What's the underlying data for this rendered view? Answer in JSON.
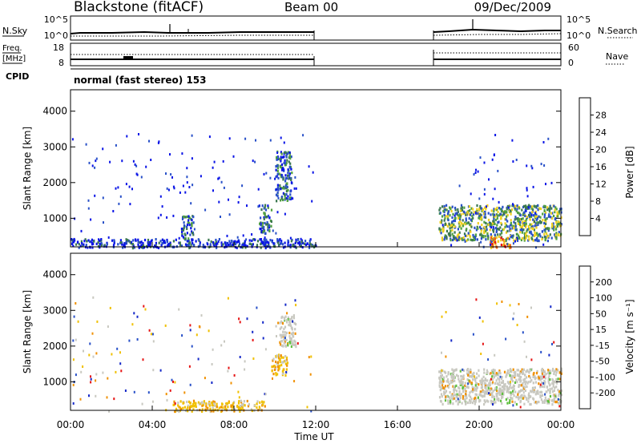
{
  "header": {
    "station": "Blackstone (fitACF)",
    "beam": "Beam 00",
    "date": "09/Dec/2009"
  },
  "strip_labels": {
    "nsky": "N.Sky",
    "nsearch": "N.Search",
    "freq": "Freq.",
    "freq_unit": "[MHz]",
    "nave": "Nave",
    "cpid": "CPID"
  },
  "strip_ticks": {
    "nsky_left": [
      "10^5",
      "10^0"
    ],
    "nsearch_right": [
      "10^5",
      "10^0"
    ],
    "freq_left": [
      "18",
      "8"
    ],
    "nave_right": [
      "60",
      "0"
    ]
  },
  "cpid_text": "normal (fast stereo) 153",
  "colors": {
    "power_scale": [
      "#0a14e6",
      "#2850c8",
      "#3c7850",
      "#50a040",
      "#f0d020",
      "#f0a000",
      "#f06400",
      "#e61414"
    ],
    "velocity_scale": [
      "#1428c8",
      "#2850c8",
      "#3c7850",
      "#60c040",
      "#c8c8c0",
      "#f0c000",
      "#f09000",
      "#f05000",
      "#e61414"
    ],
    "ground_gray": "#c8c8c0"
  },
  "chart_data": [
    {
      "type": "heatmap",
      "name": "power",
      "xlabel": "",
      "ylabel": "Slant Range [km]",
      "xlim": [
        0,
        24
      ],
      "ylim": [
        200,
        4600
      ],
      "yticks": [
        "1000",
        "2000",
        "3000",
        "4000"
      ],
      "colorbar": {
        "label": "Power [dB]",
        "ticks": [
          "4",
          "8",
          "12",
          "16",
          "20",
          "24",
          "28"
        ]
      },
      "data_gap_hours": [
        12,
        18
      ],
      "echo_regions": [
        {
          "t": [
            0,
            12
          ],
          "range_km": [
            200,
            450
          ],
          "level_db": 6
        },
        {
          "t": [
            5.4,
            6.0
          ],
          "range_km": [
            400,
            1100
          ],
          "level_db": 10
        },
        {
          "t": [
            9.2,
            9.8
          ],
          "range_km": [
            600,
            1400
          ],
          "level_db": 10
        },
        {
          "t": [
            10.0,
            10.8
          ],
          "range_km": [
            1500,
            2900
          ],
          "level_db": 12
        },
        {
          "t": [
            18,
            24
          ],
          "range_km": [
            400,
            1400
          ],
          "level_db": 16
        },
        {
          "t": [
            20.5,
            21.5
          ],
          "range_km": [
            200,
            500
          ],
          "level_db": 28
        }
      ]
    },
    {
      "type": "heatmap",
      "name": "velocity",
      "xlabel": "Time UT",
      "ylabel": "Slant Range [km]",
      "xlim": [
        0,
        24
      ],
      "ylim": [
        200,
        4600
      ],
      "xticks": [
        "00:00",
        "04:00",
        "08:00",
        "12:00",
        "16:00",
        "20:00",
        "00:00"
      ],
      "yticks": [
        "1000",
        "2000",
        "3000",
        "4000"
      ],
      "colorbar": {
        "label": "Velocity [m s⁻¹]",
        "ticks": [
          "200",
          "100",
          "50",
          "15",
          "-15",
          "-50",
          "-100",
          "-200"
        ]
      },
      "data_gap_hours": [
        12,
        18
      ],
      "echo_regions": [
        {
          "t": [
            5.0,
            9.5
          ],
          "range_km": [
            200,
            500
          ],
          "velocity_ms": -50
        },
        {
          "t": [
            9.8,
            10.6
          ],
          "range_km": [
            1200,
            1800
          ],
          "velocity_ms": -50
        },
        {
          "t": [
            10.2,
            11.0
          ],
          "range_km": [
            2000,
            2900
          ],
          "velocity_ms": 0
        },
        {
          "t": [
            18,
            24
          ],
          "range_km": [
            400,
            1400
          ],
          "velocity_ms": 0
        }
      ]
    }
  ]
}
